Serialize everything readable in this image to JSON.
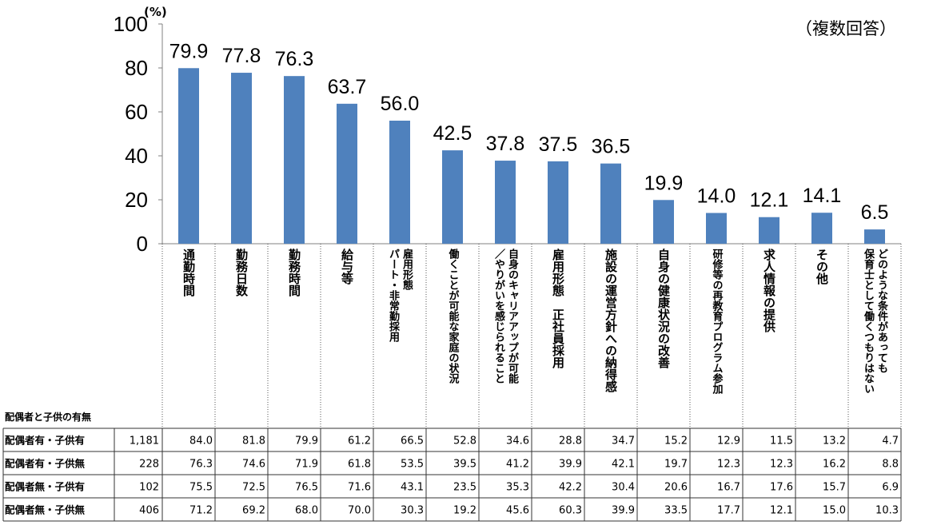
{
  "chart_data": {
    "type": "bar",
    "unit_label": "(%)",
    "note": "（複数回答）",
    "ylim": [
      0,
      100
    ],
    "yticks": [
      0,
      20,
      40,
      60,
      80,
      100
    ],
    "bar_color": "#4f81bd",
    "categories": [
      [
        "通勤時間"
      ],
      [
        "勤務日数"
      ],
      [
        "勤務時間"
      ],
      [
        "給与等"
      ],
      [
        "雇用形態",
        "パート・非常勤採用"
      ],
      [
        "働くことが可能な家庭の状況"
      ],
      [
        "自身のキャリアアップが可能",
        "／やりがいを感じられること"
      ],
      [
        "雇用形態　正社員採用"
      ],
      [
        "施設の運営方針への納得感"
      ],
      [
        "自身の健康状況の改善"
      ],
      [
        "研修等の再教育プログラム参加"
      ],
      [
        "求人情報の提供"
      ],
      [
        "その他"
      ],
      [
        "どのような条件があっても",
        "保育士として働くつもりはない"
      ]
    ],
    "values": [
      79.9,
      77.8,
      76.3,
      63.7,
      56.0,
      42.5,
      37.8,
      37.5,
      36.5,
      19.9,
      14.0,
      12.1,
      14.1,
      6.5
    ],
    "value_labels": [
      "79.9",
      "77.8",
      "76.3",
      "63.7",
      "56.0",
      "42.5",
      "37.8",
      "37.5",
      "36.5",
      "19.9",
      "14.0",
      "12.1",
      "14.1",
      "6.5"
    ]
  },
  "table": {
    "header": "配偶者と子供の有無",
    "rows": [
      {
        "label": "配偶者有・子供有",
        "n": "1,181",
        "values": [
          "84.0",
          "81.8",
          "79.9",
          "61.2",
          "66.5",
          "52.8",
          "34.6",
          "28.8",
          "34.7",
          "15.2",
          "12.9",
          "11.5",
          "13.2",
          "4.7"
        ]
      },
      {
        "label": "配偶者有・子供無",
        "n": "228",
        "values": [
          "76.3",
          "74.6",
          "71.9",
          "61.8",
          "53.5",
          "39.5",
          "41.2",
          "39.9",
          "42.1",
          "19.7",
          "12.3",
          "12.3",
          "16.2",
          "8.8"
        ]
      },
      {
        "label": "配偶者無・子供有",
        "n": "102",
        "values": [
          "75.5",
          "72.5",
          "76.5",
          "71.6",
          "43.1",
          "23.5",
          "35.3",
          "42.2",
          "30.4",
          "20.6",
          "16.7",
          "17.6",
          "15.7",
          "6.9"
        ]
      },
      {
        "label": "配偶者無・子供無",
        "n": "406",
        "values": [
          "71.2",
          "69.2",
          "68.0",
          "70.0",
          "30.3",
          "19.2",
          "45.6",
          "60.3",
          "39.9",
          "33.5",
          "17.7",
          "12.1",
          "15.0",
          "10.3"
        ]
      }
    ]
  }
}
